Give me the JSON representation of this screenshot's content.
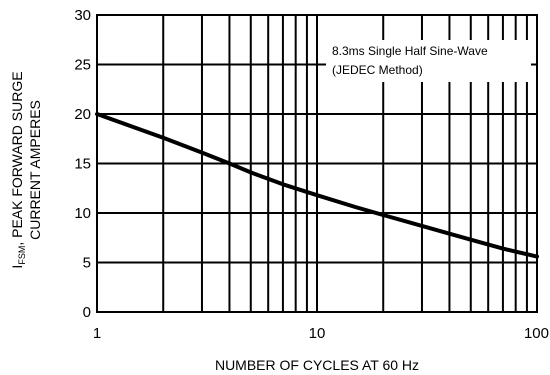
{
  "chart_data": {
    "type": "line",
    "x_scale": "log",
    "xlim": [
      1,
      100
    ],
    "ylim": [
      0,
      30
    ],
    "x_ticks": [
      1,
      10,
      100
    ],
    "x_tick_labels": [
      "1",
      "10",
      "100"
    ],
    "y_ticks": [
      0,
      5,
      10,
      15,
      20,
      25,
      30
    ],
    "y_tick_labels": [
      "0",
      "5",
      "10",
      "15",
      "20",
      "25",
      "30"
    ],
    "xlabel": "NUMBER OF CYCLES AT 60 Hz",
    "ylabel_line1_prefix": "I",
    "ylabel_line1_subscript": "FSM",
    "ylabel_line1_rest": ", PEAK FORWARD SURGE",
    "ylabel_line2": "CURRENT AMPERES",
    "annotation_lines": [
      "8.3ms Single Half Sine-Wave",
      "(JEDEC Method)"
    ],
    "grid": "log-minor-x, major-y",
    "series": [
      {
        "x": [
          1,
          2,
          3,
          4,
          5,
          7,
          10,
          15,
          20,
          30,
          50,
          70,
          100
        ],
        "values": [
          20.0,
          17.6,
          16.1,
          15.0,
          14.1,
          12.9,
          11.8,
          10.6,
          9.8,
          8.7,
          7.3,
          6.4,
          5.6
        ]
      }
    ]
  }
}
